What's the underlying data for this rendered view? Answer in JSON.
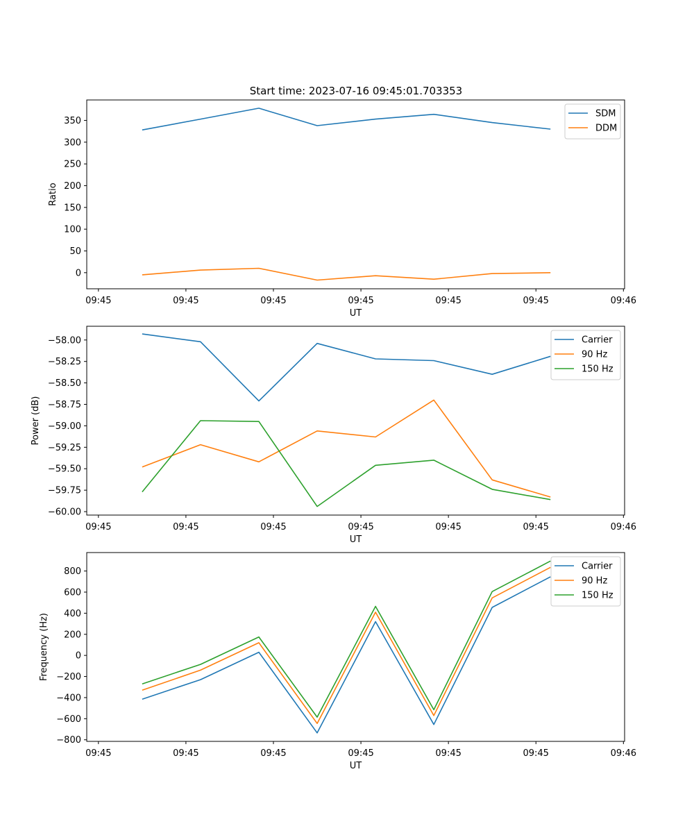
{
  "figure": {
    "title": "Start time: 2023-07-16 09:45:01.703353"
  },
  "colors": {
    "blue": "#1f77b4",
    "orange": "#ff7f0e",
    "green": "#2ca02c"
  },
  "chart_data": [
    {
      "type": "line",
      "title": "Start time: 2023-07-16 09:45:01.703353",
      "xlabel": "UT",
      "ylabel": "Ratio",
      "xticks": [
        0,
        1.5,
        3,
        4.5,
        6,
        7.5,
        9
      ],
      "xtick_labels": [
        "09:45",
        "09:45",
        "09:45",
        "09:45",
        "09:45",
        "09:45",
        "09:46"
      ],
      "xlim": [
        -0.2,
        9.02
      ],
      "x": [
        0.75,
        1.75,
        2.75,
        3.75,
        4.75,
        5.75,
        6.75,
        7.75
      ],
      "ylim": [
        -37,
        397
      ],
      "yticks": [
        0,
        50,
        100,
        150,
        200,
        250,
        300,
        350
      ],
      "ytick_labels": [
        "0",
        "50",
        "100",
        "150",
        "200",
        "250",
        "300",
        "350"
      ],
      "legend": "top-right",
      "series": [
        {
          "name": "SDM",
          "color": "#1f77b4",
          "values": [
            328,
            353,
            378,
            338,
            353,
            364,
            345,
            330
          ]
        },
        {
          "name": "DDM",
          "color": "#ff7f0e",
          "values": [
            -5,
            6,
            10,
            -17,
            -7,
            -15,
            -2,
            0
          ]
        }
      ]
    },
    {
      "type": "line",
      "title": "",
      "xlabel": "UT",
      "ylabel": "Power (dB)",
      "xticks": [
        0,
        1.5,
        3,
        4.5,
        6,
        7.5,
        9
      ],
      "xtick_labels": [
        "09:45",
        "09:45",
        "09:45",
        "09:45",
        "09:45",
        "09:45",
        "09:46"
      ],
      "xlim": [
        -0.2,
        9.02
      ],
      "x": [
        0.75,
        1.75,
        2.75,
        3.75,
        4.75,
        5.75,
        6.75,
        7.75
      ],
      "ylim": [
        -60.04,
        -57.84
      ],
      "yticks": [
        -60.0,
        -59.75,
        -59.5,
        -59.25,
        -59.0,
        -58.75,
        -58.5,
        -58.25,
        -58.0
      ],
      "ytick_labels": [
        "−60.00",
        "−59.75",
        "−59.50",
        "−59.25",
        "−59.00",
        "−58.75",
        "−58.50",
        "−58.25",
        "−58.00"
      ],
      "legend": "top-right",
      "series": [
        {
          "name": "Carrier",
          "color": "#1f77b4",
          "values": [
            -57.93,
            -58.02,
            -58.71,
            -58.04,
            -58.22,
            -58.24,
            -58.4,
            -58.19
          ]
        },
        {
          "name": "90 Hz",
          "color": "#ff7f0e",
          "values": [
            -59.48,
            -59.22,
            -59.42,
            -59.06,
            -59.13,
            -58.7,
            -59.63,
            -59.83
          ]
        },
        {
          "name": "150 Hz",
          "color": "#2ca02c",
          "values": [
            -59.77,
            -58.94,
            -58.95,
            -59.94,
            -59.46,
            -59.4,
            -59.74,
            -59.86
          ]
        }
      ]
    },
    {
      "type": "line",
      "title": "",
      "xlabel": "UT",
      "ylabel": "Frequency (Hz)",
      "xticks": [
        0,
        1.5,
        3,
        4.5,
        6,
        7.5,
        9
      ],
      "xtick_labels": [
        "09:45",
        "09:45",
        "09:45",
        "09:45",
        "09:45",
        "09:45",
        "09:46"
      ],
      "xlim": [
        -0.2,
        9.02
      ],
      "x": [
        0.75,
        1.75,
        2.75,
        3.75,
        4.75,
        5.75,
        6.75,
        7.75
      ],
      "ylim": [
        -815,
        975
      ],
      "yticks": [
        -800,
        -600,
        -400,
        -200,
        0,
        200,
        400,
        600,
        800
      ],
      "ytick_labels": [
        "−800",
        "−600",
        "−400",
        "−200",
        "0",
        "200",
        "400",
        "600",
        "800"
      ],
      "legend": "top-right",
      "series": [
        {
          "name": "Carrier",
          "color": "#1f77b4",
          "values": [
            -415,
            -230,
            30,
            -735,
            320,
            -655,
            455,
            745
          ]
        },
        {
          "name": "90 Hz",
          "color": "#ff7f0e",
          "values": [
            -330,
            -140,
            120,
            -645,
            410,
            -570,
            545,
            835
          ]
        },
        {
          "name": "150 Hz",
          "color": "#2ca02c",
          "values": [
            -270,
            -85,
            175,
            -585,
            465,
            -515,
            605,
            895
          ]
        }
      ]
    }
  ]
}
